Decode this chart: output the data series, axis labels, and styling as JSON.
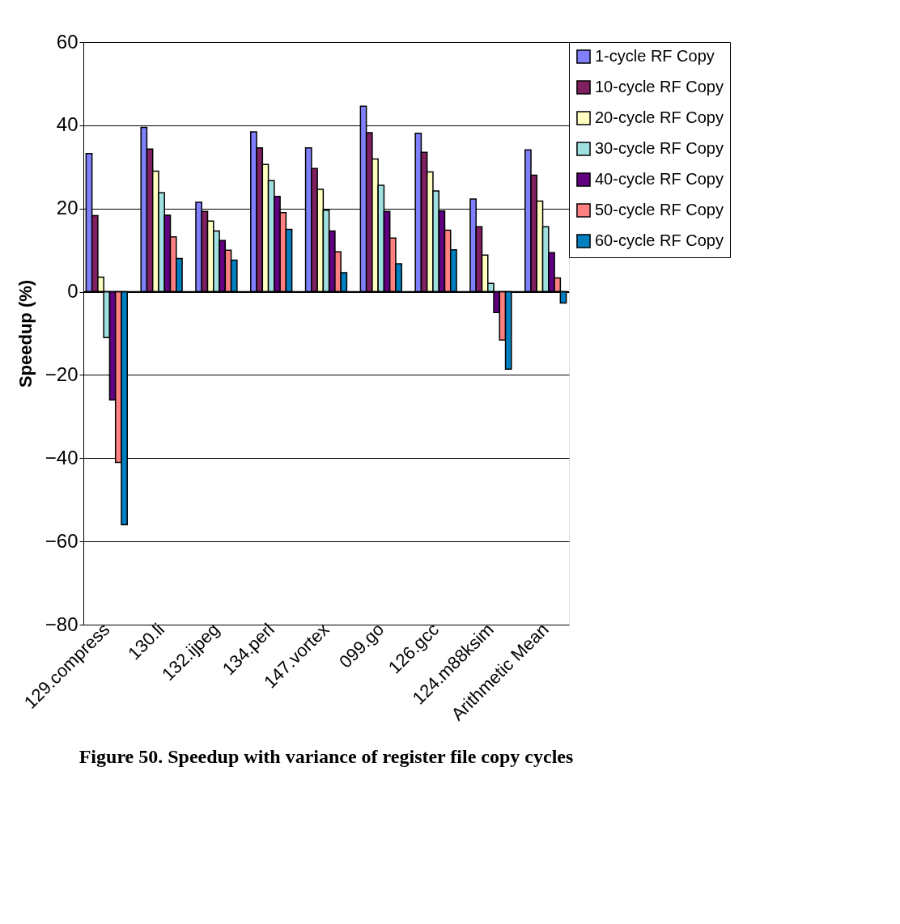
{
  "chart_data": {
    "type": "bar",
    "title": "Figure 50. Speedup with variance of register file copy cycles",
    "ylabel": "Speedup (%)",
    "categories": [
      "129.compress",
      "130.li",
      "132.ijpeg",
      "134.perl",
      "147.vortex",
      "099.go",
      "126.gcc",
      "124.m88ksim",
      "Arithmetic Mean"
    ],
    "series": [
      {
        "name": "1-cycle RF Copy",
        "color": "#8080ff",
        "values": [
          33.2,
          39.5,
          21.5,
          38.4,
          34.6,
          44.6,
          38.1,
          22.3,
          34.1
        ]
      },
      {
        "name": "10-cycle RF Copy",
        "color": "#802060",
        "values": [
          18.3,
          34.3,
          19.3,
          34.6,
          29.6,
          38.2,
          33.5,
          15.6,
          28.0
        ]
      },
      {
        "name": "20-cycle RF Copy",
        "color": "#ffffc0",
        "values": [
          3.5,
          29.0,
          17.0,
          30.6,
          24.6,
          31.9,
          28.8,
          8.8,
          21.8
        ]
      },
      {
        "name": "30-cycle RF Copy",
        "color": "#a0e0e0",
        "values": [
          -11.0,
          23.8,
          14.6,
          26.7,
          19.6,
          25.6,
          24.2,
          2.0,
          15.6
        ]
      },
      {
        "name": "40-cycle RF Copy",
        "color": "#600080",
        "values": [
          -26.0,
          18.4,
          12.3,
          22.9,
          14.6,
          19.3,
          19.4,
          -5.0,
          9.4
        ]
      },
      {
        "name": "50-cycle RF Copy",
        "color": "#ff8080",
        "values": [
          -41.0,
          13.2,
          10.0,
          19.0,
          9.6,
          12.9,
          14.8,
          -11.6,
          3.3
        ]
      },
      {
        "name": "60-cycle RF Copy",
        "color": "#0080c0",
        "values": [
          -56.0,
          8.0,
          7.6,
          15.0,
          4.6,
          6.7,
          10.1,
          -18.6,
          -2.7
        ]
      }
    ],
    "ylim": [
      -80,
      60
    ],
    "yticks": [
      -80,
      -60,
      -40,
      -20,
      0,
      20,
      40,
      60
    ],
    "grid": "y",
    "legend": "right"
  }
}
